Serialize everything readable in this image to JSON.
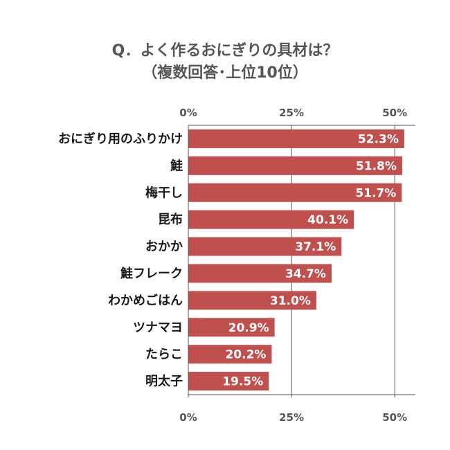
{
  "title": {
    "line1": "Q．よく作るおにぎりの具材は？",
    "line2": "（複数回答･上位10位）"
  },
  "colors": {
    "bar": "#c0504d",
    "axis": "#555555",
    "grid": "#555555"
  },
  "chart_data": {
    "type": "bar",
    "orientation": "horizontal",
    "title": "Q．よく作るおにぎりの具材は？（複数回答･上位10位）",
    "categories": [
      "おにぎり用のふりかけ",
      "鮭",
      "梅干し",
      "昆布",
      "おかか",
      "鮭フレーク",
      "わかめごはん",
      "ツナマヨ",
      "たらこ",
      "明太子"
    ],
    "values": [
      52.3,
      51.8,
      51.7,
      40.1,
      37.1,
      34.7,
      31.0,
      20.9,
      20.2,
      19.5
    ],
    "value_labels": [
      "52.3%",
      "51.8%",
      "51.7%",
      "40.1%",
      "37.1%",
      "34.7%",
      "31.0%",
      "20.9%",
      "20.2%",
      "19.5%"
    ],
    "ticks": [
      0,
      25,
      50
    ],
    "tick_labels": [
      "0%",
      "25%",
      "50%"
    ],
    "xlim": [
      0,
      55
    ],
    "grid": true,
    "legend": "none"
  }
}
